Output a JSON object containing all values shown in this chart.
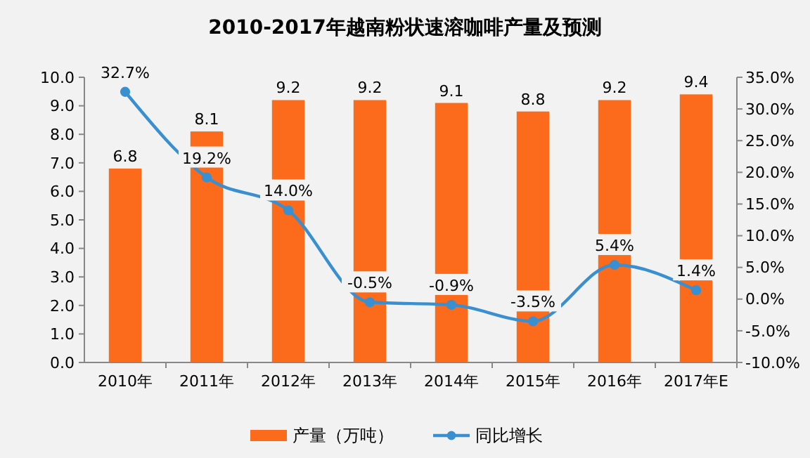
{
  "chart_data": {
    "type": "bar",
    "title": "2010-2017年越南粉状速溶咖啡产量及预测",
    "categories": [
      "2010年",
      "2011年",
      "2012年",
      "2013年",
      "2014年",
      "2015年",
      "2016年",
      "2017年E"
    ],
    "series": [
      {
        "name": "产量（万吨）",
        "color": "#fc6a1c",
        "values": [
          6.8,
          8.1,
          9.2,
          9.2,
          9.1,
          8.8,
          9.2,
          9.4
        ],
        "value_labels": [
          "6.8",
          "8.1",
          "9.2",
          "9.2",
          "9.1",
          "8.8",
          "9.2",
          "9.4"
        ]
      },
      {
        "name": "同比增长",
        "type": "line",
        "axis": "y2",
        "color": "#3a8fd0",
        "marker": "circle",
        "values": [
          32.7,
          19.2,
          14.0,
          -0.5,
          -0.9,
          -3.5,
          5.4,
          1.4
        ],
        "value_labels": [
          "32.7%",
          "19.2%",
          "14.0%",
          "-0.5%",
          "-0.9%",
          "-3.5%",
          "5.4%",
          "1.4%"
        ]
      }
    ],
    "ylim": [
      0,
      10
    ],
    "yticks": [
      {
        "value": 0,
        "label": "0.0"
      },
      {
        "value": 1,
        "label": "1.0"
      },
      {
        "value": 2,
        "label": "2.0"
      },
      {
        "value": 3,
        "label": "3.0"
      },
      {
        "value": 4,
        "label": "4.0"
      },
      {
        "value": 5,
        "label": "5.0"
      },
      {
        "value": 6,
        "label": "6.0"
      },
      {
        "value": 7,
        "label": "7.0"
      },
      {
        "value": 8,
        "label": "8.0"
      },
      {
        "value": 9,
        "label": "9.0"
      },
      {
        "value": 10,
        "label": "10.0"
      }
    ],
    "y2lim": [
      -10,
      35
    ],
    "y2ticks": [
      {
        "value": -10,
        "label": "-10.0%"
      },
      {
        "value": -5,
        "label": "-5.0%"
      },
      {
        "value": 0,
        "label": "0.0%"
      },
      {
        "value": 5,
        "label": "5.0%"
      },
      {
        "value": 10,
        "label": "10.0%"
      },
      {
        "value": 15,
        "label": "15.0%"
      },
      {
        "value": 20,
        "label": "20.0%"
      },
      {
        "value": 25,
        "label": "25.0%"
      },
      {
        "value": 30,
        "label": "30.0%"
      },
      {
        "value": 35,
        "label": "35.0%"
      }
    ],
    "grid": false,
    "legend": "bottom"
  }
}
